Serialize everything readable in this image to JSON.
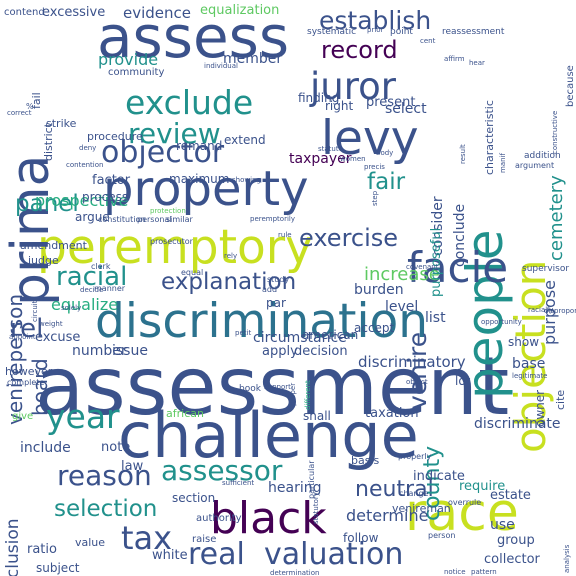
{
  "palette": {
    "navy": "#3b528b",
    "purple": "#472d7b",
    "teal": "#21918c",
    "green": "#27ad81",
    "lime": "#5ec962",
    "yellow": "#c8e020",
    "dark": "#440154",
    "blue": "#2c728e"
  },
  "words": [
    {
      "text": "assessment",
      "color": "navy"
    },
    {
      "text": "challenge",
      "color": "navy"
    },
    {
      "text": "discrimination",
      "color": "blue"
    },
    {
      "text": "property",
      "color": "navy"
    },
    {
      "text": "assess",
      "color": "navy"
    },
    {
      "text": "peremptory",
      "color": "yellow"
    },
    {
      "text": "levy",
      "color": "navy"
    },
    {
      "text": "people",
      "color": "teal"
    },
    {
      "text": "objection",
      "color": "yellow"
    },
    {
      "text": "facie",
      "color": "navy"
    },
    {
      "text": "prima",
      "color": "navy"
    },
    {
      "text": "race",
      "color": "yellow"
    },
    {
      "text": "black",
      "color": "dark"
    },
    {
      "text": "valuation",
      "color": "navy"
    },
    {
      "text": "real",
      "color": "navy"
    },
    {
      "text": "juror",
      "color": "navy"
    },
    {
      "text": "exclude",
      "color": "teal"
    },
    {
      "text": "objector",
      "color": "navy"
    },
    {
      "text": "review",
      "color": "teal"
    },
    {
      "text": "record",
      "color": "dark"
    },
    {
      "text": "establish",
      "color": "navy"
    },
    {
      "text": "assessor",
      "color": "teal"
    },
    {
      "text": "year",
      "color": "teal"
    },
    {
      "text": "tax",
      "color": "navy"
    },
    {
      "text": "reason",
      "color": "navy"
    },
    {
      "text": "explanation",
      "color": "navy"
    },
    {
      "text": "racial",
      "color": "teal"
    },
    {
      "text": "panel",
      "color": "teal"
    },
    {
      "text": "exercise",
      "color": "navy"
    },
    {
      "text": "selection",
      "color": "teal"
    },
    {
      "text": "neutral",
      "color": "navy"
    },
    {
      "text": "county",
      "color": "teal"
    },
    {
      "text": "venire",
      "color": "navy"
    },
    {
      "text": "rel",
      "color": "navy"
    },
    {
      "text": "fair",
      "color": "teal"
    },
    {
      "text": "board",
      "color": "navy"
    },
    {
      "text": "venireperson",
      "color": "navy"
    },
    {
      "text": "cemetery",
      "color": "teal"
    },
    {
      "text": "exclusion",
      "color": "navy"
    },
    {
      "text": "determine",
      "color": "navy"
    },
    {
      "text": "hearing",
      "color": "navy"
    },
    {
      "text": "provide",
      "color": "teal"
    },
    {
      "text": "member",
      "color": "navy"
    },
    {
      "text": "evidence",
      "color": "navy"
    },
    {
      "text": "excessive",
      "color": "navy"
    },
    {
      "text": "equalization",
      "color": "lime"
    },
    {
      "text": "prospective",
      "color": "green"
    },
    {
      "text": "discriminatory",
      "color": "navy"
    },
    {
      "text": "decision",
      "color": "navy"
    },
    {
      "text": "apply",
      "color": "navy"
    },
    {
      "text": "issue",
      "color": "navy"
    },
    {
      "text": "number",
      "color": "navy"
    },
    {
      "text": "excuse",
      "color": "navy"
    },
    {
      "text": "factor",
      "color": "navy"
    },
    {
      "text": "process",
      "color": "navy"
    },
    {
      "text": "maximum",
      "color": "navy"
    },
    {
      "text": "taxpayer",
      "color": "dark"
    },
    {
      "text": "argue",
      "color": "navy"
    },
    {
      "text": "amendment",
      "color": "navy"
    },
    {
      "text": "judge",
      "color": "navy"
    },
    {
      "text": "increase",
      "color": "lime"
    },
    {
      "text": "burden",
      "color": "navy"
    },
    {
      "text": "level",
      "color": "navy"
    },
    {
      "text": "accept",
      "color": "navy"
    },
    {
      "text": "show",
      "color": "navy"
    },
    {
      "text": "base",
      "color": "navy"
    },
    {
      "text": "consider",
      "color": "navy"
    },
    {
      "text": "purpose",
      "color": "navy"
    },
    {
      "text": "purposeful",
      "color": "teal"
    },
    {
      "text": "conclude",
      "color": "navy"
    },
    {
      "text": "circumstance",
      "color": "navy"
    },
    {
      "text": "equalize",
      "color": "green"
    },
    {
      "text": "par",
      "color": "navy"
    },
    {
      "text": "list",
      "color": "navy"
    },
    {
      "text": "american",
      "color": "navy"
    },
    {
      "text": "remand",
      "color": "navy"
    },
    {
      "text": "extend",
      "color": "navy"
    },
    {
      "text": "procedure",
      "color": "navy"
    },
    {
      "text": "right",
      "color": "navy"
    },
    {
      "text": "finding",
      "color": "navy"
    },
    {
      "text": "present",
      "color": "navy"
    },
    {
      "text": "select",
      "color": "navy"
    },
    {
      "text": "strike",
      "color": "navy"
    },
    {
      "text": "note",
      "color": "navy"
    },
    {
      "text": "law",
      "color": "navy"
    },
    {
      "text": "shall",
      "color": "navy"
    },
    {
      "text": "taxation",
      "color": "navy"
    },
    {
      "text": "discriminate",
      "color": "navy"
    },
    {
      "text": "indicate",
      "color": "navy"
    },
    {
      "text": "require",
      "color": "teal"
    },
    {
      "text": "estate",
      "color": "navy"
    },
    {
      "text": "use",
      "color": "navy"
    },
    {
      "text": "group",
      "color": "navy"
    },
    {
      "text": "collector",
      "color": "navy"
    },
    {
      "text": "follow",
      "color": "navy"
    },
    {
      "text": "section",
      "color": "navy"
    },
    {
      "text": "white",
      "color": "navy"
    },
    {
      "text": "authority",
      "color": "navy"
    },
    {
      "text": "raise",
      "color": "navy"
    },
    {
      "text": "ratio",
      "color": "navy"
    },
    {
      "text": "subject",
      "color": "navy"
    },
    {
      "text": "value",
      "color": "navy"
    },
    {
      "text": "include",
      "color": "navy"
    },
    {
      "text": "however",
      "color": "navy"
    },
    {
      "text": "give",
      "color": "lime"
    },
    {
      "text": "lot",
      "color": "navy"
    },
    {
      "text": "cite",
      "color": "navy"
    },
    {
      "text": "owner",
      "color": "navy"
    },
    {
      "text": "basis",
      "color": "navy"
    },
    {
      "text": "african",
      "color": "lime"
    },
    {
      "text": "venireman",
      "color": "navy"
    },
    {
      "text": "district",
      "color": "navy"
    },
    {
      "text": "fail",
      "color": "navy"
    },
    {
      "text": "contend",
      "color": "navy"
    },
    {
      "text": "community",
      "color": "navy"
    },
    {
      "text": "systematic",
      "color": "navy"
    },
    {
      "text": "point",
      "color": "navy"
    },
    {
      "text": "reassessment",
      "color": "navy"
    },
    {
      "text": "characteristic",
      "color": "navy"
    },
    {
      "text": "because",
      "color": "navy"
    },
    {
      "text": "supervisor",
      "color": "navy"
    },
    {
      "text": "prosecutor",
      "color": "navy"
    },
    {
      "text": "constitution",
      "color": "navy"
    },
    {
      "text": "personal",
      "color": "navy"
    },
    {
      "text": "similar",
      "color": "navy"
    },
    {
      "text": "clerk",
      "color": "navy"
    },
    {
      "text": "equal",
      "color": "navy"
    },
    {
      "text": "manner",
      "color": "navy"
    },
    {
      "text": "decide",
      "color": "navy"
    },
    {
      "text": "circuit",
      "color": "navy"
    },
    {
      "text": "solely",
      "color": "navy"
    },
    {
      "text": "petit",
      "color": "navy"
    },
    {
      "text": "weight",
      "color": "navy"
    },
    {
      "text": "complete",
      "color": "navy"
    },
    {
      "text": "book",
      "color": "navy"
    },
    {
      "text": "support",
      "color": "navy"
    },
    {
      "text": "proper",
      "color": "navy"
    },
    {
      "text": "different",
      "color": "green"
    },
    {
      "text": "particular",
      "color": "navy"
    },
    {
      "text": "statutory",
      "color": "navy"
    },
    {
      "text": "properly",
      "color": "navy"
    },
    {
      "text": "change",
      "color": "navy"
    },
    {
      "text": "overrule",
      "color": "navy"
    },
    {
      "text": "person",
      "color": "navy"
    },
    {
      "text": "notice",
      "color": "navy"
    },
    {
      "text": "pattern",
      "color": "navy"
    },
    {
      "text": "object",
      "color": "navy"
    },
    {
      "text": "sufficient",
      "color": "navy"
    },
    {
      "text": "determination",
      "color": "navy"
    },
    {
      "text": "racially",
      "color": "navy"
    },
    {
      "text": "opportunity",
      "color": "navy"
    },
    {
      "text": "legitimate",
      "color": "navy"
    },
    {
      "text": "analysis",
      "color": "navy"
    },
    {
      "text": "statute",
      "color": "navy"
    },
    {
      "text": "women",
      "color": "navy"
    },
    {
      "text": "deny",
      "color": "navy"
    },
    {
      "text": "contention",
      "color": "navy"
    },
    {
      "text": "correct",
      "color": "navy"
    },
    {
      "text": "individual",
      "color": "navy"
    },
    {
      "text": "addition",
      "color": "navy"
    },
    {
      "text": "argument",
      "color": "navy"
    },
    {
      "text": "step",
      "color": "navy"
    },
    {
      "text": "showing",
      "color": "navy"
    },
    {
      "text": "protection",
      "color": "lime"
    },
    {
      "text": "peremptorily",
      "color": "navy"
    },
    {
      "text": "rule",
      "color": "navy"
    },
    {
      "text": "rely",
      "color": "navy"
    },
    {
      "text": "covenant",
      "color": "navy"
    },
    {
      "text": "disproportionate",
      "color": "navy"
    },
    {
      "text": "study",
      "color": "navy"
    },
    {
      "text": "add",
      "color": "navy"
    },
    {
      "text": "body",
      "color": "navy"
    },
    {
      "text": "appoint",
      "color": "navy"
    },
    {
      "text": "prior",
      "color": "navy"
    },
    {
      "text": "cent",
      "color": "navy"
    },
    {
      "text": "affirm",
      "color": "navy"
    },
    {
      "text": "hear",
      "color": "navy"
    },
    {
      "text": "%",
      "color": "navy"
    },
    {
      "text": "precis",
      "color": "navy"
    },
    {
      "text": "manif",
      "color": "navy"
    },
    {
      "text": "result",
      "color": "navy"
    },
    {
      "text": "constructive",
      "color": "navy"
    }
  ]
}
